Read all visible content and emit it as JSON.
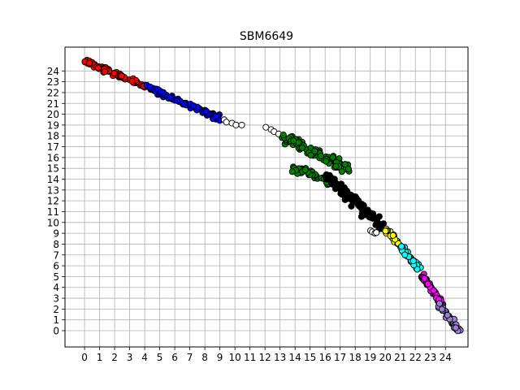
{
  "chart_data": {
    "type": "scatter",
    "title": "SBM6649",
    "xlabel": "",
    "ylabel": "",
    "xlim": [
      -1.3,
      25.5
    ],
    "ylim": [
      -1.5,
      26.2
    ],
    "xticks": [
      "0",
      "1",
      "2",
      "3",
      "4",
      "5",
      "6",
      "7",
      "8",
      "9",
      "10",
      "11",
      "12",
      "13",
      "14",
      "15",
      "16",
      "17",
      "18",
      "19",
      "20",
      "21",
      "22",
      "23",
      "24"
    ],
    "yticks": [
      "0",
      "1",
      "2",
      "3",
      "4",
      "5",
      "6",
      "7",
      "8",
      "9",
      "10",
      "11",
      "12",
      "13",
      "14",
      "15",
      "16",
      "17",
      "18",
      "19",
      "20",
      "21",
      "22",
      "23",
      "24"
    ],
    "grid": true,
    "marker": "circle",
    "edge_color": "#000000",
    "clusters": [
      {
        "color": "#ff0000",
        "x_range": [
          0,
          4
        ],
        "segments": [
          [
            0,
            24.9,
            4,
            22.6
          ]
        ]
      },
      {
        "color": "#0000ff",
        "x_range": [
          4,
          9
        ],
        "segments": [
          [
            4,
            22.6,
            9,
            19.6
          ]
        ]
      },
      {
        "color": "#ffffff",
        "x_range": [
          9,
          10.5
        ],
        "segments": [
          [
            9.2,
            19.5,
            10.4,
            18.9
          ]
        ]
      },
      {
        "color": "#ffffff",
        "x_range": [
          12,
          13
        ],
        "segments": [
          [
            12.1,
            18.8,
            12.9,
            18.2
          ]
        ]
      },
      {
        "color": "#008000",
        "x_range": [
          13,
          18
        ],
        "segments": [
          [
            13.1,
            17.9,
            17.7,
            14.8
          ],
          [
            13.9,
            15.3,
            16.3,
            13.8
          ]
        ]
      },
      {
        "color": "#000000",
        "x_range": [
          16,
          20
        ],
        "segments": [
          [
            16.1,
            14.3,
            19.8,
            9.6
          ]
        ]
      },
      {
        "color": "#ffffff",
        "x_range": [
          19,
          19.5
        ],
        "segments": [
          [
            19.0,
            9.2,
            19.4,
            9.0
          ]
        ]
      },
      {
        "color": "#ffff00",
        "x_range": [
          20,
          21
        ],
        "segments": [
          [
            20.0,
            9.4,
            20.9,
            8.0
          ]
        ]
      },
      {
        "color": "#00ffff",
        "x_range": [
          21,
          22.5
        ],
        "segments": [
          [
            21.0,
            7.8,
            22.4,
            5.5
          ]
        ]
      },
      {
        "color": "#ff00ff",
        "x_range": [
          22.5,
          24
        ],
        "segments": [
          [
            22.4,
            5.2,
            23.8,
            2.4
          ]
        ]
      },
      {
        "color": "#9b7fd4",
        "x_range": [
          23.5,
          25
        ],
        "segments": [
          [
            23.6,
            2.3,
            24.9,
            0.0
          ]
        ]
      }
    ]
  }
}
